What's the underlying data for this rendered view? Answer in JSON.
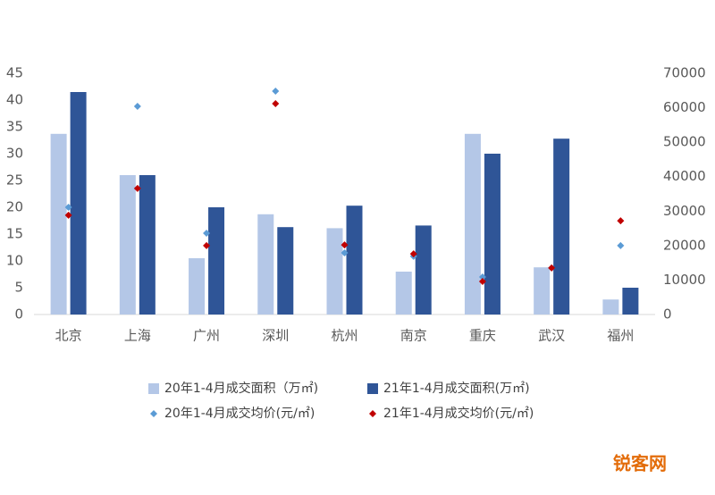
{
  "chart_data": {
    "type": "bar",
    "categories": [
      "北京",
      "上海",
      "广州",
      "深圳",
      "杭州",
      "南京",
      "重庆",
      "武汉",
      "福州"
    ],
    "series": [
      {
        "name": "20年1-4月成交面积（万㎡)",
        "type": "bar",
        "color": "#b4c7e7",
        "values": [
          33.7,
          26,
          10.5,
          18.7,
          16.1,
          8,
          33.7,
          8.8,
          2.8
        ]
      },
      {
        "name": "21年1-4月成交面积(万㎡)",
        "type": "bar",
        "color": "#2f5597",
        "values": [
          41.5,
          26,
          20,
          16.3,
          20.3,
          16.6,
          30,
          32.8,
          5
        ]
      },
      {
        "name": "20年1-4月成交均价(元/㎡)",
        "type": "scatter",
        "axis": "y2",
        "color": "#5b9bd5",
        "values": [
          31100,
          60400,
          23600,
          64800,
          17900,
          16900,
          10900,
          13500,
          20000
        ]
      },
      {
        "name": "21年1-4月成交均价(元/㎡)",
        "type": "scatter",
        "axis": "y2",
        "color": "#c00000",
        "values": [
          28800,
          36600,
          20000,
          61200,
          20200,
          17600,
          9600,
          13500,
          27200
        ]
      }
    ],
    "ylim": [
      0,
      45
    ],
    "yticks": [
      0,
      5,
      10,
      15,
      20,
      25,
      30,
      35,
      40,
      45
    ],
    "y2lim": [
      0,
      70000
    ],
    "y2ticks": [
      0,
      10000,
      20000,
      30000,
      40000,
      50000,
      60000,
      70000
    ],
    "grid": false,
    "watermark": "锐客网"
  }
}
